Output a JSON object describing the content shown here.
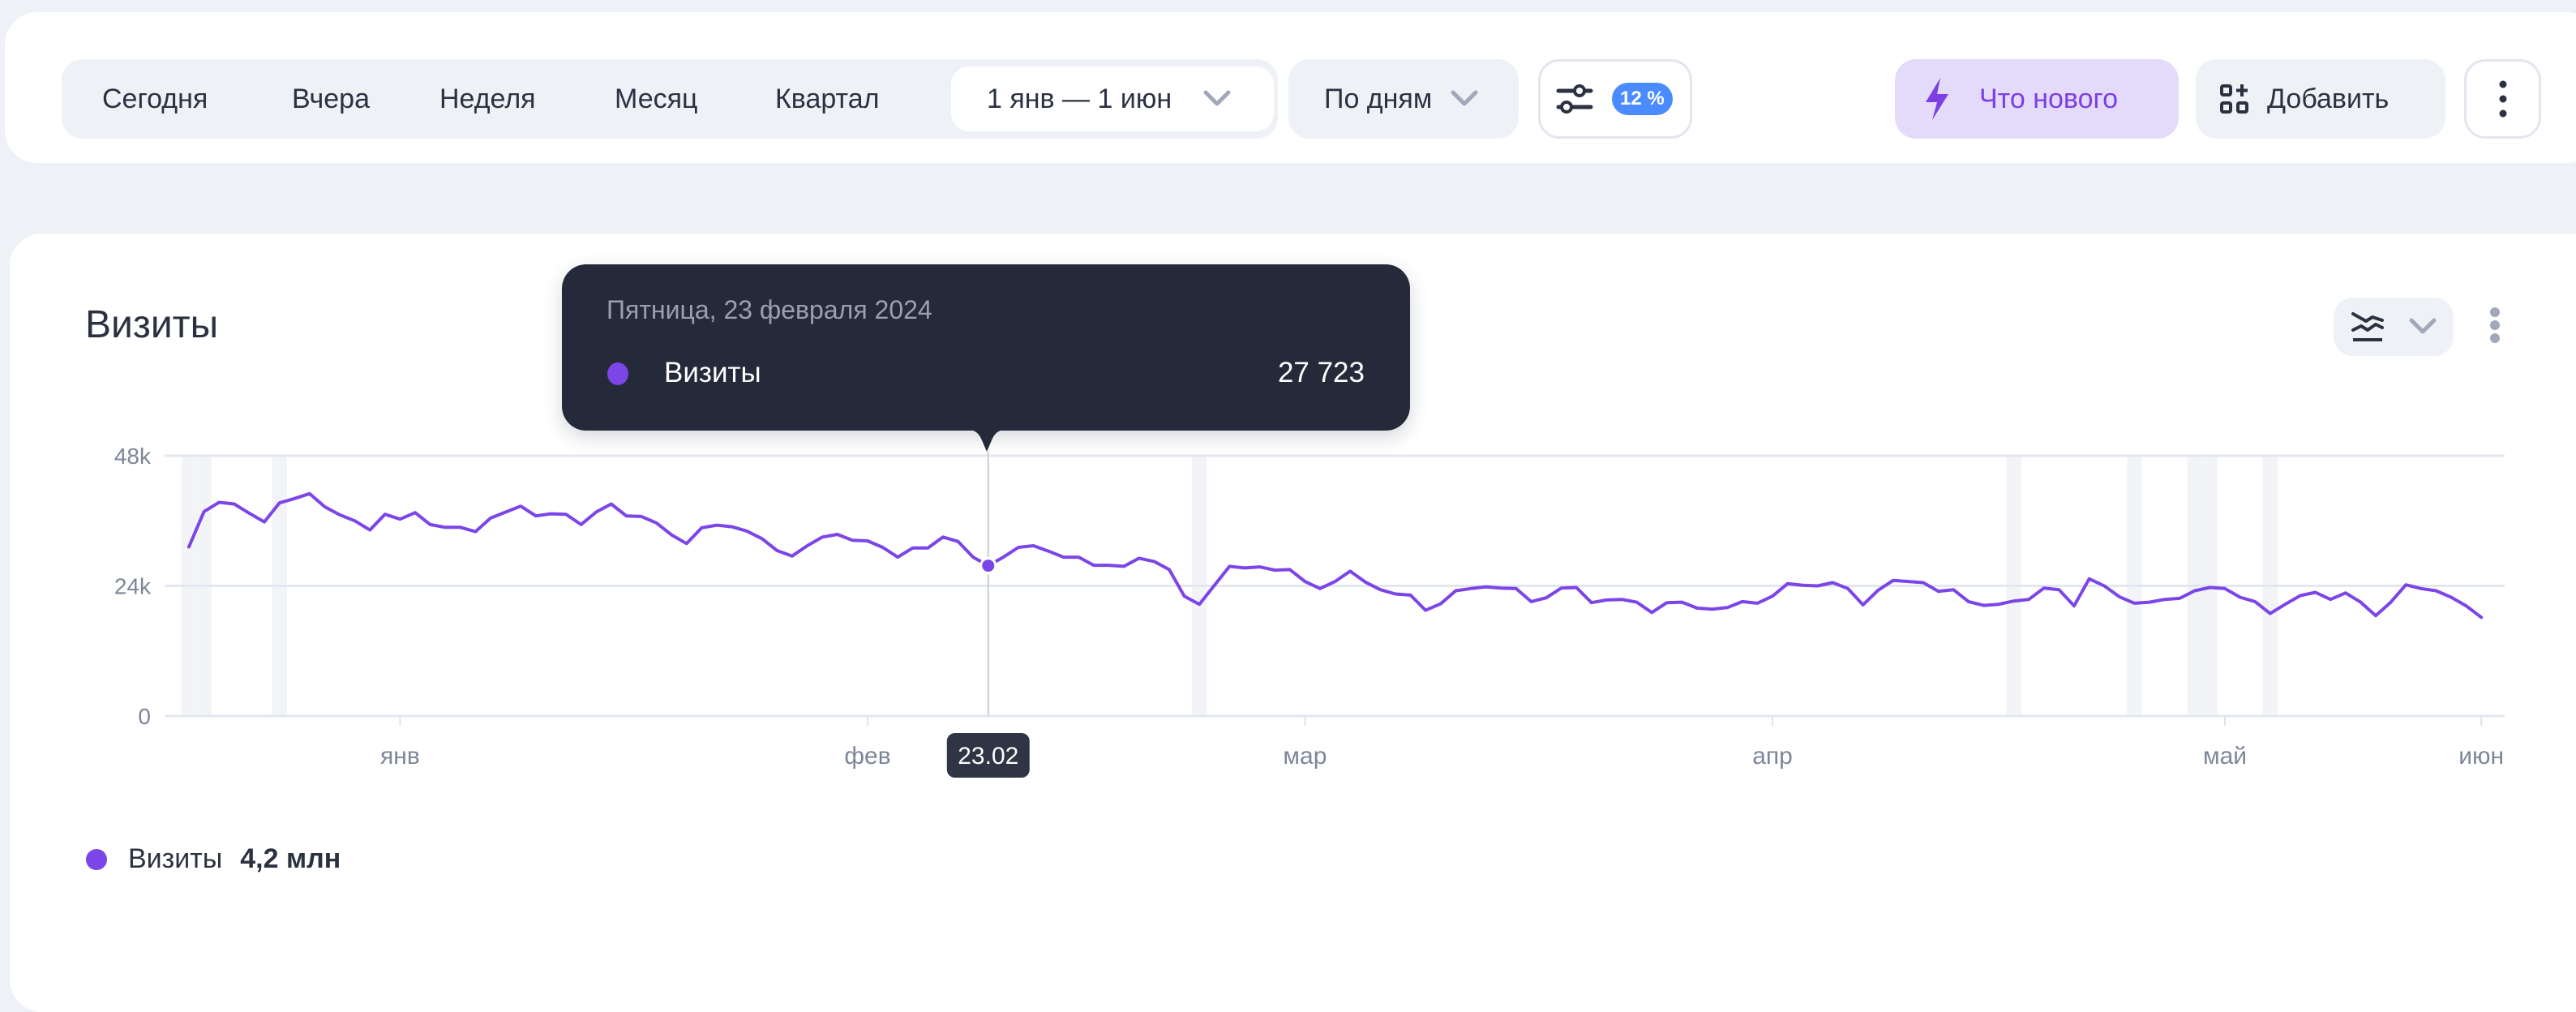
{
  "toolbar": {
    "periods": [
      "Сегодня",
      "Вчера",
      "Неделя",
      "Месяц",
      "Квартал"
    ],
    "date_range": "1 янв — 1 июн",
    "grouping": "По дням",
    "filter_badge": "12 %",
    "whats_new": "Что нового",
    "add": "Добавить",
    "accent_color": "#7b3fe4",
    "badge_color": "#4a8cff"
  },
  "card": {
    "title": "Визиты",
    "chart_type_icon": "line-chart-icon"
  },
  "tooltip": {
    "date": "Пятница, 23 февраля 2024",
    "metric": "Визиты",
    "value": "27 723"
  },
  "legend": {
    "metric": "Визиты",
    "total": "4,2 млн"
  },
  "chart_data": {
    "type": "line",
    "granularity": "day",
    "x_range": [
      "2024-01-01",
      "2024-06-01"
    ],
    "ylim": [
      0,
      48000
    ],
    "yticks": [
      {
        "value": 0,
        "label": "0"
      },
      {
        "value": 24000,
        "label": "24k"
      },
      {
        "value": 48000,
        "label": "48k"
      }
    ],
    "xticks": [
      {
        "date": "2024-01-15",
        "label": "янв"
      },
      {
        "date": "2024-02-15",
        "label": "фев"
      },
      {
        "date": "2024-03-15",
        "label": "мар"
      },
      {
        "date": "2024-04-15",
        "label": "апр"
      },
      {
        "date": "2024-05-15",
        "label": "май"
      },
      {
        "date": "2024-06-01",
        "label": "июн"
      }
    ],
    "highlighted_days": [
      "2024-01-01",
      "2024-01-02",
      "2024-01-07",
      "2024-03-08",
      "2024-05-01",
      "2024-05-09",
      "2024-05-13",
      "2024-05-14",
      "2024-05-18"
    ],
    "hover": {
      "date": "2024-02-23",
      "label": "23.02",
      "value": 27723
    },
    "grid": true,
    "series": [
      {
        "name": "Визиты",
        "color": "#7c45e8",
        "values": [
          31200,
          37700,
          39400,
          39100,
          37400,
          35800,
          39300,
          40100,
          41000,
          38600,
          37100,
          36000,
          34300,
          37200,
          36300,
          37500,
          35300,
          34800,
          34800,
          34000,
          36500,
          37600,
          38700,
          36900,
          37300,
          37200,
          35300,
          37600,
          39100,
          36900,
          36800,
          35600,
          33400,
          31800,
          34700,
          35200,
          34900,
          34100,
          32700,
          30500,
          29500,
          31400,
          33000,
          33500,
          32400,
          32300,
          31100,
          29300,
          31000,
          31000,
          33000,
          32200,
          29300,
          27723,
          29300,
          31100,
          31400,
          30400,
          29300,
          29300,
          27800,
          27800,
          27600,
          29100,
          28500,
          27000,
          22100,
          20600,
          24100,
          27600,
          27300,
          27500,
          26900,
          27000,
          24800,
          23500,
          24800,
          26700,
          24700,
          23300,
          22500,
          22300,
          19500,
          20700,
          23100,
          23500,
          23800,
          23600,
          23500,
          21100,
          21800,
          23600,
          23700,
          20900,
          21400,
          21500,
          21000,
          19100,
          20900,
          21000,
          19900,
          19700,
          20000,
          21100,
          20800,
          22100,
          24400,
          24100,
          24000,
          24600,
          23500,
          20500,
          23200,
          25000,
          24800,
          24600,
          23000,
          23300,
          21100,
          20400,
          20600,
          21200,
          21500,
          23600,
          23300,
          20300,
          25300,
          24000,
          22000,
          20800,
          21000,
          21500,
          21700,
          23100,
          23700,
          23500,
          21900,
          21100,
          18900,
          20600,
          22200,
          22800,
          21500,
          22700,
          21000,
          18500,
          21000,
          24200,
          23500,
          23100,
          21900,
          20300,
          18200
        ]
      }
    ]
  }
}
